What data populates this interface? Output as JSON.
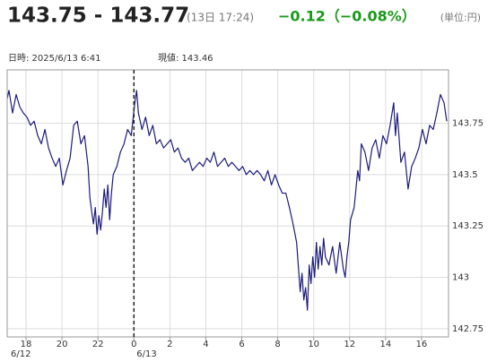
{
  "chart_data": {
    "type": "line",
    "title": "143.75 - 143.77",
    "subtitle": "(13日 17:24)",
    "change": "−0.12（−0.08%）",
    "change_color": "#1a9a1a",
    "unit": "(単位:円)",
    "info_time": "日時: 2025/6/13  6:41",
    "info_value": "現値: 143.46",
    "color": "#1c1c7c",
    "grid": true,
    "xlim": [
      16.95,
      41.5
    ],
    "ylim": [
      142.71,
      144.01
    ],
    "xticks": [
      18,
      20,
      22,
      {
        "value": 24,
        "label": "0"
      },
      {
        "value": 26,
        "label": "2"
      },
      {
        "value": 28,
        "label": "4"
      },
      {
        "value": 30,
        "label": "6"
      },
      {
        "value": 32,
        "label": "8"
      },
      {
        "value": 34,
        "label": "10"
      },
      {
        "value": 36,
        "label": "12"
      },
      {
        "value": 38,
        "label": "14"
      },
      {
        "value": 40,
        "label": "16"
      }
    ],
    "yticks": [
      142.75,
      143,
      143.25,
      143.5,
      143.75
    ],
    "date_labels": [
      "6/12",
      "6/13"
    ],
    "day_divider": 24,
    "x": [
      16.95,
      17.05,
      17.25,
      17.45,
      17.65,
      17.85,
      18.05,
      18.25,
      18.45,
      18.65,
      18.85,
      19.05,
      19.25,
      19.45,
      19.65,
      19.85,
      20.05,
      20.25,
      20.45,
      20.65,
      20.85,
      21.05,
      21.25,
      21.45,
      21.55,
      21.65,
      21.75,
      21.85,
      21.95,
      22.05,
      22.15,
      22.25,
      22.35,
      22.45,
      22.55,
      22.65,
      22.75,
      22.85,
      23.05,
      23.25,
      23.45,
      23.65,
      23.85,
      24.05,
      24.15,
      24.25,
      24.45,
      24.65,
      24.85,
      25.05,
      25.25,
      25.45,
      25.65,
      25.85,
      26.05,
      26.25,
      26.45,
      26.65,
      26.85,
      27.05,
      27.25,
      27.45,
      27.65,
      27.85,
      28.05,
      28.25,
      28.45,
      28.65,
      28.85,
      29.05,
      29.25,
      29.45,
      29.65,
      29.85,
      30.05,
      30.25,
      30.45,
      30.65,
      30.85,
      31.05,
      31.25,
      31.45,
      31.65,
      31.85,
      32.05,
      32.25,
      32.45,
      32.65,
      32.85,
      33.05,
      33.25,
      33.35,
      33.45,
      33.55,
      33.65,
      33.75,
      33.85,
      33.95,
      34.05,
      34.15,
      34.25,
      34.35,
      34.45,
      34.55,
      34.65,
      34.85,
      35.05,
      35.25,
      35.45,
      35.65,
      35.75,
      35.85,
      35.95,
      36.05,
      36.25,
      36.45,
      36.55,
      36.65,
      36.85,
      37.05,
      37.25,
      37.45,
      37.65,
      37.85,
      38.05,
      38.25,
      38.45,
      38.55,
      38.65,
      38.85,
      39.05,
      39.25,
      39.45,
      39.65,
      39.85,
      40.05,
      40.25,
      40.45,
      40.65,
      40.85,
      41.05,
      41.25,
      41.4
    ],
    "values": [
      143.87,
      143.91,
      143.8,
      143.89,
      143.83,
      143.8,
      143.78,
      143.74,
      143.76,
      143.69,
      143.65,
      143.72,
      143.63,
      143.58,
      143.54,
      143.58,
      143.45,
      143.52,
      143.58,
      143.74,
      143.76,
      143.65,
      143.69,
      143.54,
      143.39,
      143.32,
      143.26,
      143.34,
      143.21,
      143.3,
      143.23,
      143.32,
      143.43,
      143.34,
      143.45,
      143.28,
      143.41,
      143.5,
      143.54,
      143.61,
      143.65,
      143.72,
      143.69,
      143.85,
      143.91,
      143.8,
      143.72,
      143.78,
      143.69,
      143.74,
      143.65,
      143.67,
      143.63,
      143.65,
      143.67,
      143.61,
      143.63,
      143.58,
      143.56,
      143.58,
      143.52,
      143.54,
      143.56,
      143.54,
      143.58,
      143.56,
      143.61,
      143.54,
      143.56,
      143.58,
      143.54,
      143.56,
      143.54,
      143.52,
      143.54,
      143.5,
      143.52,
      143.5,
      143.52,
      143.5,
      143.47,
      143.52,
      143.45,
      143.5,
      143.45,
      143.41,
      143.41,
      143.34,
      143.26,
      143.17,
      142.93,
      143.02,
      142.89,
      142.95,
      142.84,
      143.06,
      142.97,
      143.1,
      143.0,
      143.17,
      143.04,
      143.15,
      143.06,
      143.19,
      143.1,
      143.06,
      143.15,
      143.02,
      143.17,
      143.04,
      143.0,
      143.1,
      143.17,
      143.28,
      143.34,
      143.52,
      143.47,
      143.65,
      143.61,
      143.52,
      143.63,
      143.67,
      143.58,
      143.69,
      143.65,
      143.74,
      143.85,
      143.69,
      143.8,
      143.56,
      143.61,
      143.43,
      143.54,
      143.58,
      143.63,
      143.72,
      143.65,
      143.74,
      143.72,
      143.8,
      143.89,
      143.85,
      143.76
    ]
  }
}
